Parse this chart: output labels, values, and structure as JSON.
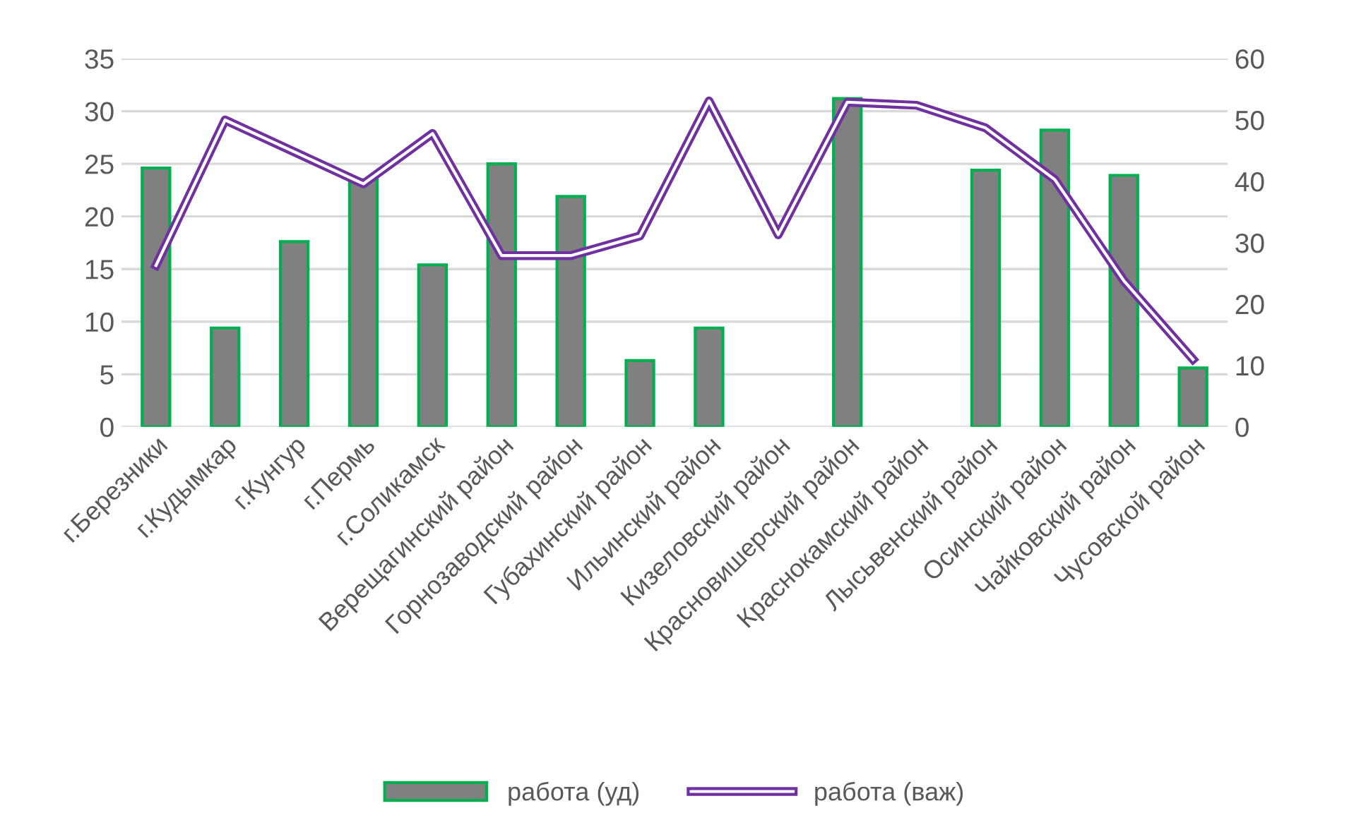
{
  "chart_data": {
    "type": "bar",
    "categories": [
      "г.Березники",
      "г.Кудымкар",
      "г.Кунгур",
      "г.Пермь",
      "г.Соликамск",
      "Верещагинский район",
      "Горнозаводский район",
      "Губахинский район",
      "Ильинский район",
      "Кизеловский район",
      "Красновишерский район",
      "Краснокамский район",
      "Лысьвенский район",
      "Осинский район",
      "Чайковский район",
      "Чусовской район"
    ],
    "series": [
      {
        "name": "работа (уд)",
        "color": "#808080",
        "values": [
          24.6,
          9.4,
          17.6,
          23.5,
          15.4,
          25.0,
          21.9,
          6.3,
          9.4,
          null,
          31.2,
          null,
          24.4,
          28.2,
          23.9,
          5.6
        ]
      },
      {
        "name": "работа (важ)",
        "type": "line",
        "axis": "y2",
        "color": "#7030a0",
        "values": [
          26.3,
          50,
          44.8,
          39.6,
          47.8,
          27.9,
          27.9,
          31.1,
          53.1,
          31.3,
          52.9,
          52.4,
          48.7,
          40.3,
          23.8,
          11
        ]
      }
    ],
    "ylim": [
      0,
      35
    ],
    "yticks": [
      0,
      5,
      10,
      15,
      20,
      25,
      30,
      35
    ],
    "y2lim": [
      0,
      60
    ],
    "y2ticks": [
      0,
      10,
      20,
      30,
      40,
      50,
      60
    ],
    "grid": "y",
    "legend": "bottom"
  }
}
